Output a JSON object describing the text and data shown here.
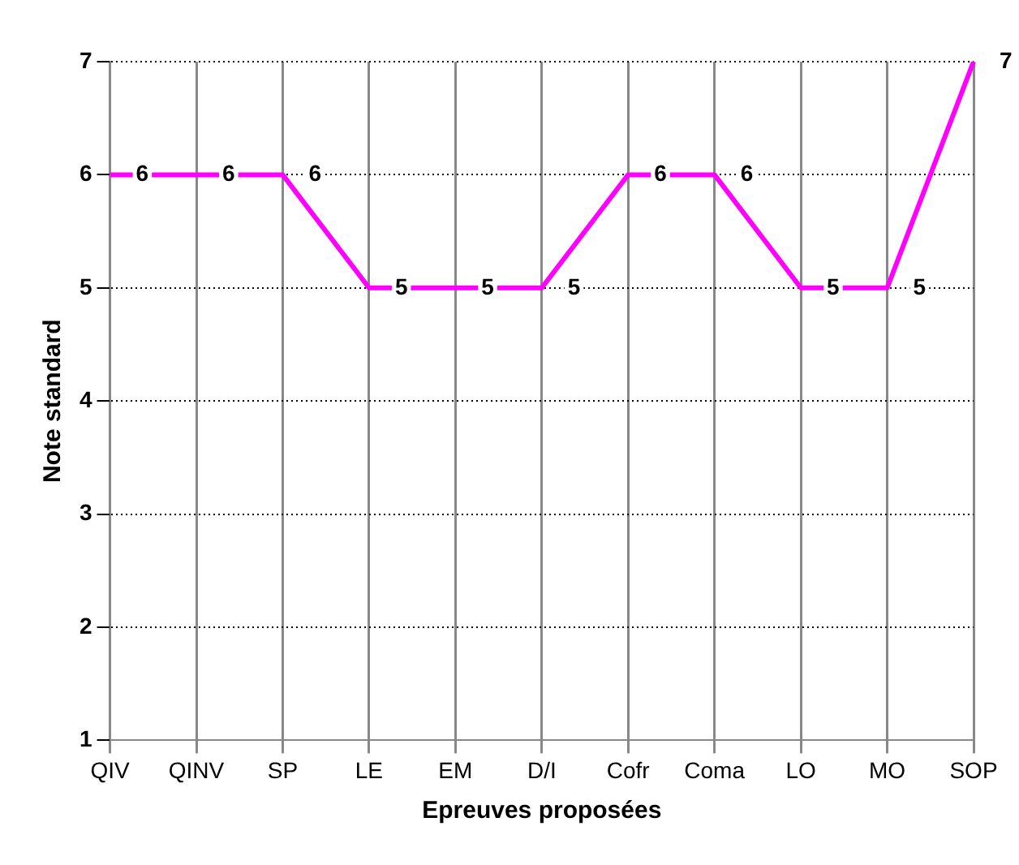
{
  "chart_data": {
    "type": "line",
    "xlabel": "Epreuves proposées",
    "ylabel": "Note standard",
    "categories": [
      "QIV",
      "QINV",
      "SP",
      "LE",
      "EM",
      "D/I",
      "Cofr",
      "Coma",
      "LO",
      "MO",
      "SOP"
    ],
    "series": [
      {
        "color": "#ff00ff",
        "values": [
          6,
          6,
          6,
          5,
          5,
          5,
          6,
          6,
          5,
          5,
          7
        ]
      }
    ],
    "ylim": [
      1,
      7
    ],
    "yticks": [
      1,
      2,
      3,
      4,
      5,
      6,
      7
    ],
    "grid": true,
    "legend": false,
    "marker": "none",
    "line_style": "solid",
    "data_labels": true
  }
}
